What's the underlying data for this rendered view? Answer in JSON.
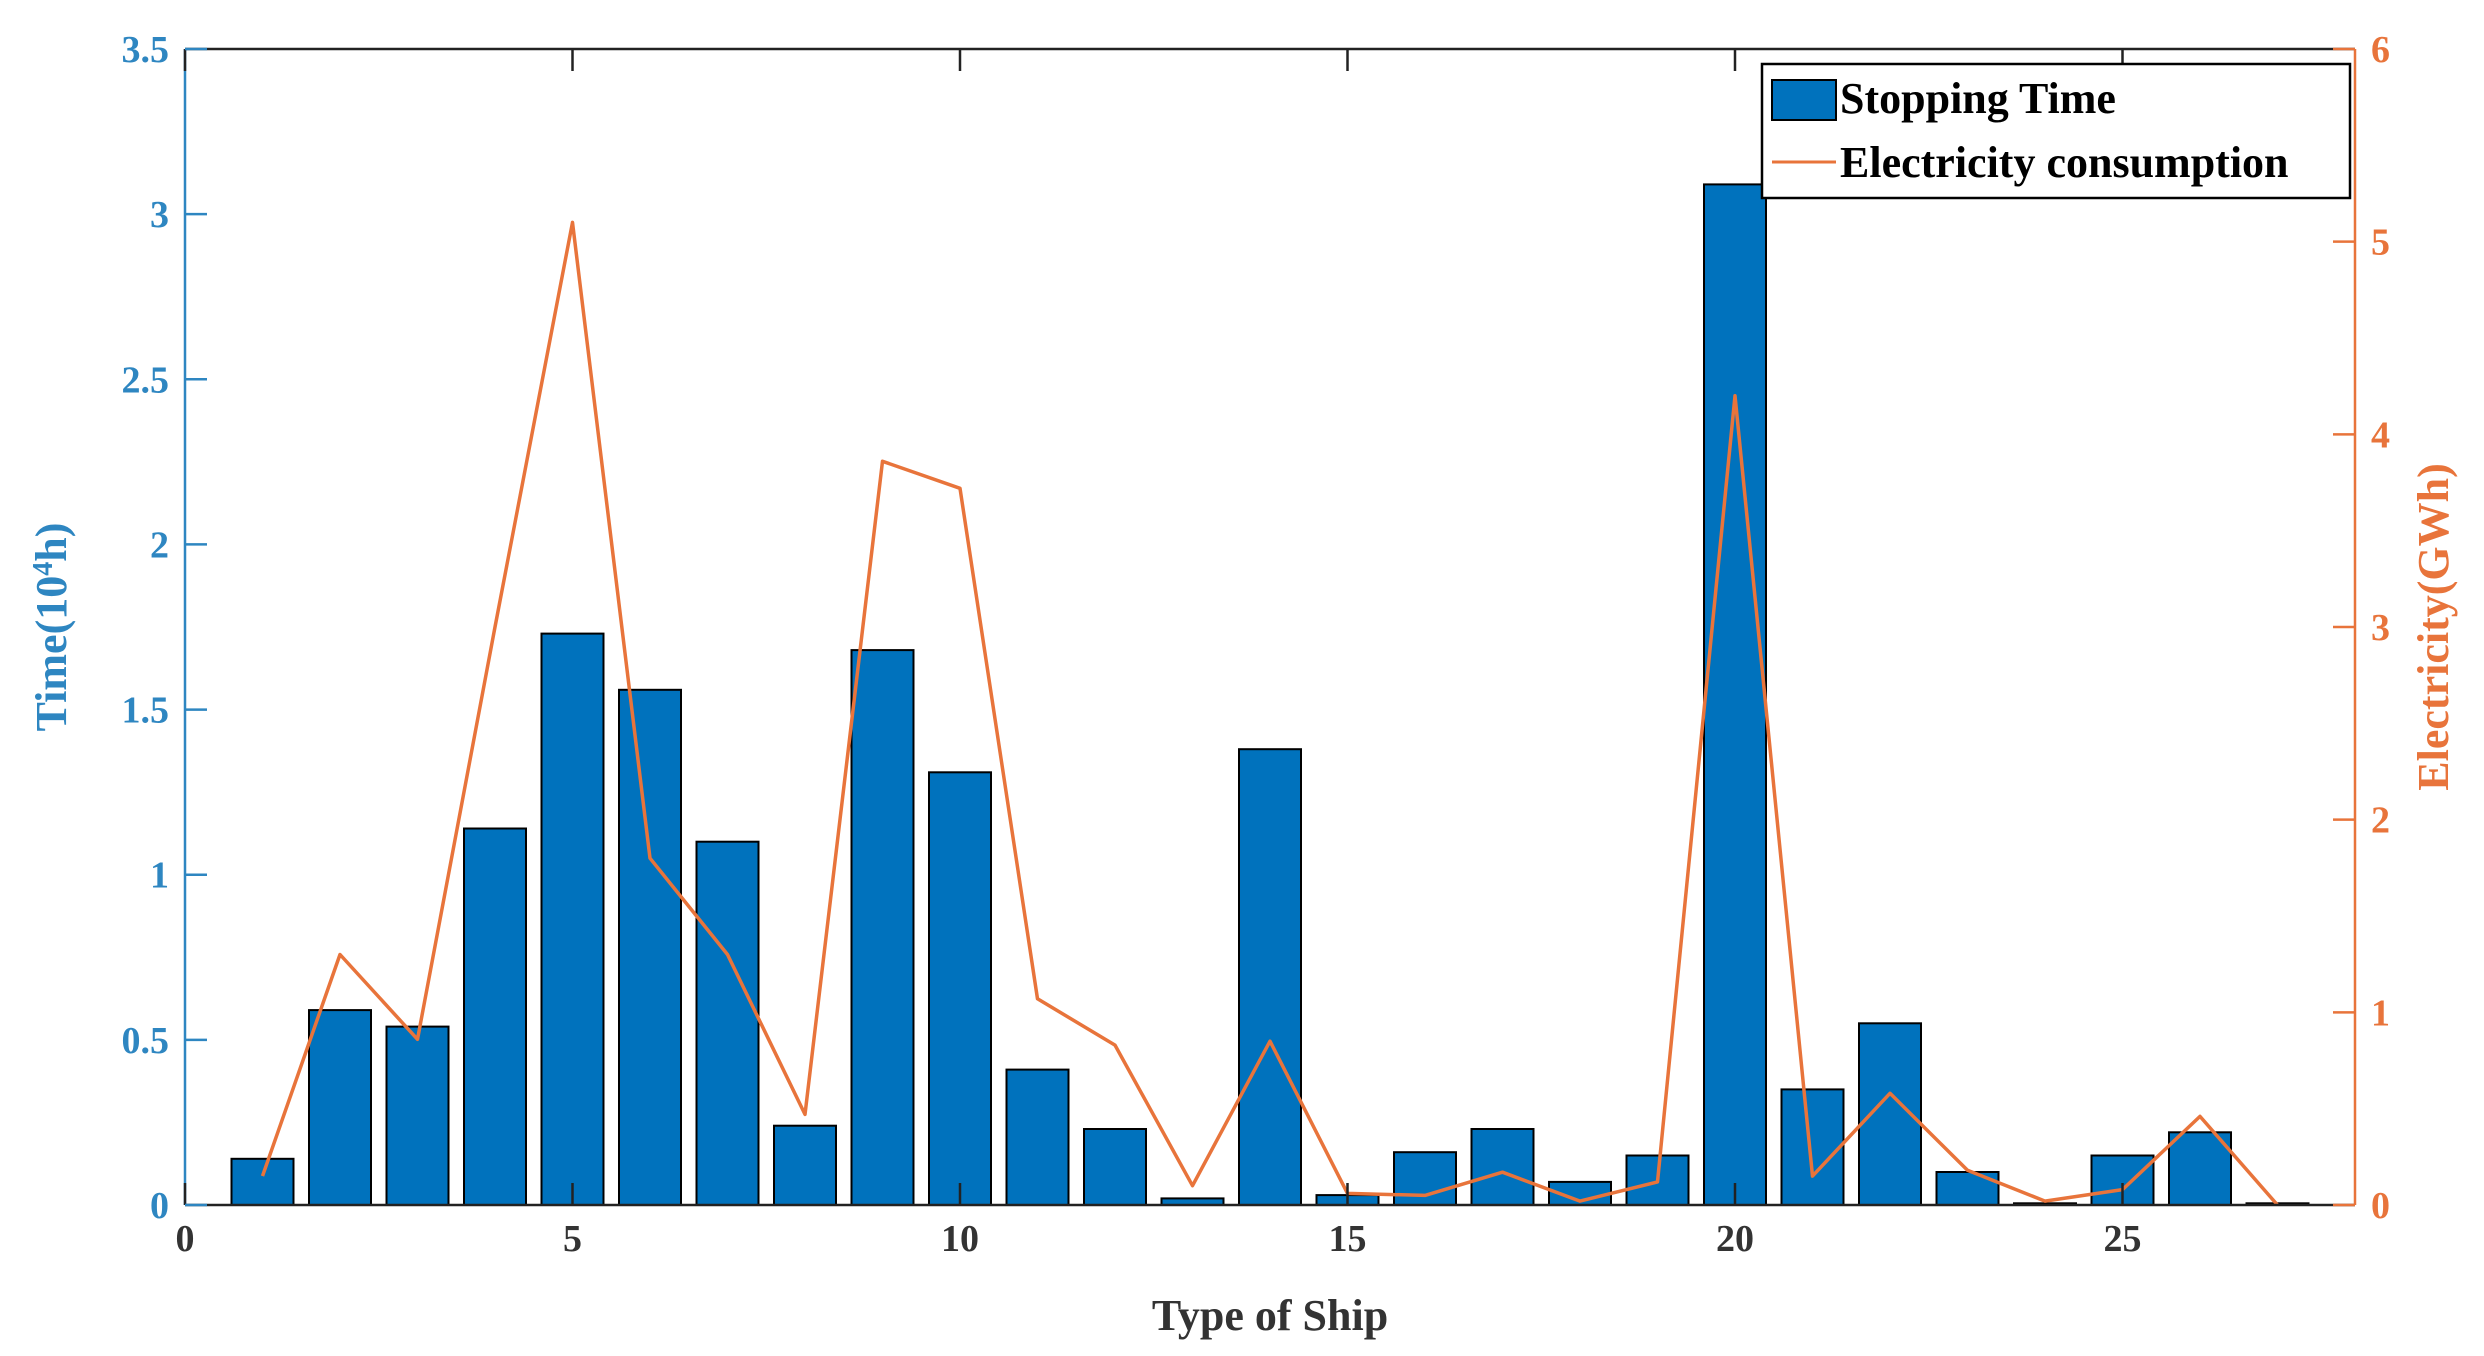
{
  "chart_data": {
    "type": "bar+line",
    "title": "",
    "xlabel": "Type of Ship",
    "ylabel_left": "Time(10",
    "ylabel_left_sup": "4",
    "ylabel_left_suffix": "h)",
    "ylabel_right": "Electricity(GWh)",
    "xlim": [
      0,
      28
    ],
    "ylim_left": [
      0,
      3.5
    ],
    "ylim_right": [
      0,
      6
    ],
    "x_ticks": [
      0,
      5,
      10,
      15,
      20,
      25
    ],
    "y_left_ticks": [
      0,
      0.5,
      1,
      1.5,
      2,
      2.5,
      3,
      3.5
    ],
    "y_left_tick_labels": [
      "0",
      "0.5",
      "1",
      "1.5",
      "2",
      "2.5",
      "3",
      "3.5"
    ],
    "y_right_ticks": [
      0,
      1,
      2,
      3,
      4,
      5,
      6
    ],
    "y_right_tick_labels": [
      "0",
      "1",
      "2",
      "3",
      "4",
      "5",
      "6"
    ],
    "legend_position": "top-right",
    "categories": [
      1,
      2,
      3,
      4,
      5,
      6,
      7,
      8,
      9,
      10,
      11,
      12,
      13,
      14,
      15,
      16,
      17,
      18,
      19,
      20,
      21,
      22,
      23,
      24,
      25,
      26,
      27
    ],
    "series": [
      {
        "name": "Stopping Time",
        "type": "bar",
        "axis": "left",
        "color": "#0072BD",
        "values": [
          0.14,
          0.59,
          0.54,
          1.14,
          1.73,
          1.56,
          1.1,
          0.24,
          1.68,
          1.31,
          0.41,
          0.23,
          0.02,
          1.38,
          0.03,
          0.16,
          0.23,
          0.07,
          0.15,
          3.09,
          0.35,
          0.55,
          0.1,
          0.005,
          0.15,
          0.22,
          0.005
        ]
      },
      {
        "name": "Electricity consumption",
        "type": "line",
        "axis": "right",
        "color": "#D95319",
        "values": [
          0.15,
          1.3,
          0.86,
          3.0,
          5.1,
          1.8,
          1.3,
          0.47,
          3.86,
          3.72,
          1.07,
          0.83,
          0.1,
          0.85,
          0.06,
          0.05,
          0.17,
          0.02,
          0.12,
          4.2,
          0.15,
          0.58,
          0.18,
          0.02,
          0.08,
          0.46,
          0.0
        ]
      }
    ]
  },
  "colors": {
    "left_axis": "#2E86C1",
    "right_axis": "#E8743B",
    "bar_fill": "#0072BD",
    "line": "#E8743B",
    "axis_black": "#222222"
  }
}
